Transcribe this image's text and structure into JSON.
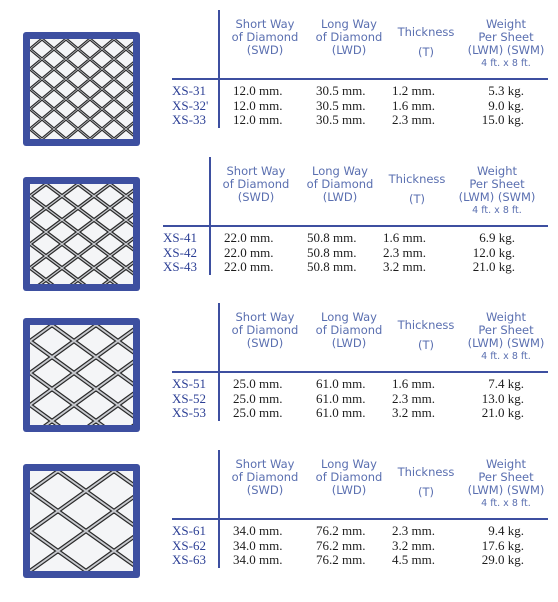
{
  "headers": {
    "swd": "Short Way\nof Diamond\n(SWD)",
    "lwd": "Long Way\nof Diamond\n(LWD)",
    "thickness_a": "Thickness",
    "thickness_b": "(T)",
    "weight": "Weight\nPer Sheet\n(LWM) (SWM)",
    "sheet": "4 ft. x 8 ft."
  },
  "groups": [
    {
      "rows": [
        {
          "code": "XS-31",
          "swd": "12.0 mm.",
          "lwd": "30.5 mm.",
          "t": "1.2 mm.",
          "w": "5.3 kg."
        },
        {
          "code": "XS-32'",
          "swd": "12.0 mm.",
          "lwd": "30.5 mm.",
          "t": "1.6 mm.",
          "w": "9.0 kg."
        },
        {
          "code": "XS-33",
          "swd": "12.0 mm.",
          "lwd": "30.5 mm.",
          "t": "2.3 mm.",
          "w": "15.0 kg."
        }
      ]
    },
    {
      "rows": [
        {
          "code": "XS-41",
          "swd": "22.0 mm.",
          "lwd": "50.8 mm.",
          "t": "1.6 mm.",
          "w": "6.9 kg."
        },
        {
          "code": "XS-42",
          "swd": "22.0 mm.",
          "lwd": "50.8 mm.",
          "t": "2.3 mm.",
          "w": "12.0 kg."
        },
        {
          "code": "XS-43",
          "swd": "22.0 mm.",
          "lwd": "50.8 mm.",
          "t": "3.2 mm.",
          "w": "21.0 kg."
        }
      ]
    },
    {
      "rows": [
        {
          "code": "XS-51",
          "swd": "25.0 mm.",
          "lwd": "61.0 mm.",
          "t": "1.6 mm.",
          "w": "7.4 kg."
        },
        {
          "code": "XS-52",
          "swd": "25.0 mm.",
          "lwd": "61.0 mm.",
          "t": "2.3 mm.",
          "w": "13.0 kg."
        },
        {
          "code": "XS-53",
          "swd": "25.0 mm.",
          "lwd": "61.0 mm.",
          "t": "3.2 mm.",
          "w": "21.0 kg."
        }
      ]
    },
    {
      "rows": [
        {
          "code": "XS-61",
          "swd": "34.0 mm.",
          "lwd": "76.2 mm.",
          "t": "2.3 mm.",
          "w": "9.4 kg."
        },
        {
          "code": "XS-62",
          "swd": "34.0 mm.",
          "lwd": "76.2 mm.",
          "t": "3.2 mm.",
          "w": "17.6 kg."
        },
        {
          "code": "XS-63",
          "swd": "34.0 mm.",
          "lwd": "76.2 mm.",
          "t": "4.5 mm.",
          "w": "29.0 kg."
        }
      ]
    }
  ],
  "colors": {
    "frame": "#3d4fa0",
    "header_text": "#5a6fb0",
    "code_text": "#2c3f95",
    "value_text": "#1c1c1c"
  }
}
